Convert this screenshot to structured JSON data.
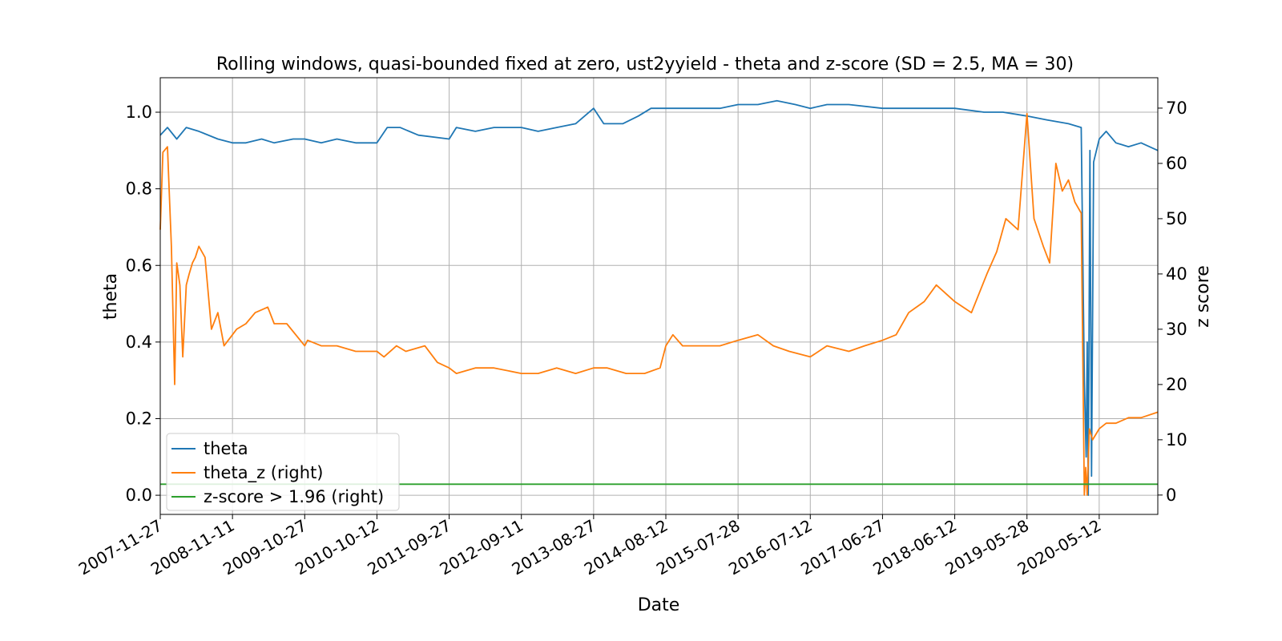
{
  "chart_data": {
    "type": "line",
    "title": "Rolling windows, quasi-bounded fixed at zero, ust2yyield - theta and z-score (SD = 2.5, MA = 30)",
    "xlabel": "Date",
    "ylabel": "theta",
    "y2label": "z score",
    "x_tick_labels": [
      "2007-11-27",
      "2008-11-11",
      "2009-10-27",
      "2010-10-12",
      "2011-09-27",
      "2012-09-11",
      "2013-08-27",
      "2014-08-12",
      "2015-07-28",
      "2016-07-12",
      "2017-06-27",
      "2018-06-12",
      "2019-05-28",
      "2020-05-12"
    ],
    "xlim": [
      "2007-11-27",
      "2021-02-20"
    ],
    "ylim": [
      -0.05,
      1.09
    ],
    "y2lim": [
      -3.5,
      75.5
    ],
    "y_ticks": [
      0.0,
      0.2,
      0.4,
      0.6,
      0.8,
      1.0
    ],
    "y_tick_labels": [
      "0.0",
      "0.2",
      "0.4",
      "0.6",
      "0.8",
      "1.0"
    ],
    "y2_ticks": [
      0,
      10,
      20,
      30,
      40,
      50,
      60,
      70
    ],
    "y2_tick_labels": [
      "0",
      "10",
      "20",
      "30",
      "40",
      "50",
      "60",
      "70"
    ],
    "grid": true,
    "legend_position": "lower-left",
    "colors": {
      "theta": "#1f77b4",
      "theta_z": "#ff7f0e",
      "threshold": "#2ca02c",
      "grid": "#b0b0b0"
    },
    "series": [
      {
        "name": "theta",
        "axis": "left",
        "x": [
          "2007-11-27",
          "2008-01-01",
          "2008-02-15",
          "2008-04-01",
          "2008-06-01",
          "2008-09-01",
          "2008-11-11",
          "2009-01-15",
          "2009-04-01",
          "2009-06-01",
          "2009-09-01",
          "2009-10-27",
          "2010-01-15",
          "2010-04-01",
          "2010-07-01",
          "2010-10-12",
          "2010-12-01",
          "2011-02-01",
          "2011-05-01",
          "2011-09-27",
          "2011-11-01",
          "2012-02-01",
          "2012-05-01",
          "2012-09-11",
          "2012-12-01",
          "2013-03-01",
          "2013-06-01",
          "2013-08-27",
          "2013-10-15",
          "2014-01-15",
          "2014-04-01",
          "2014-06-01",
          "2014-08-12",
          "2014-11-01",
          "2015-02-01",
          "2015-05-01",
          "2015-07-28",
          "2015-11-01",
          "2016-02-01",
          "2016-05-01",
          "2016-07-12",
          "2016-10-01",
          "2017-01-15",
          "2017-06-27",
          "2017-10-01",
          "2018-01-15",
          "2018-06-12",
          "2018-11-01",
          "2019-02-01",
          "2019-05-28",
          "2019-09-01",
          "2019-12-15",
          "2020-02-15",
          "2020-03-01",
          "2020-03-10",
          "2020-03-15",
          "2020-03-20",
          "2020-03-28",
          "2020-04-05",
          "2020-04-15",
          "2020-05-12",
          "2020-06-15",
          "2020-08-01",
          "2020-10-01",
          "2020-12-01",
          "2021-02-20"
        ],
        "values": [
          0.94,
          0.96,
          0.93,
          0.96,
          0.95,
          0.93,
          0.92,
          0.92,
          0.93,
          0.92,
          0.93,
          0.93,
          0.92,
          0.93,
          0.92,
          0.92,
          0.96,
          0.96,
          0.94,
          0.93,
          0.96,
          0.95,
          0.96,
          0.96,
          0.95,
          0.96,
          0.97,
          1.01,
          0.97,
          0.97,
          0.99,
          1.01,
          1.01,
          1.01,
          1.01,
          1.01,
          1.02,
          1.02,
          1.03,
          1.02,
          1.01,
          1.02,
          1.02,
          1.01,
          1.01,
          1.01,
          1.01,
          1.0,
          1.0,
          0.99,
          0.98,
          0.97,
          0.96,
          0.3,
          0.1,
          0.4,
          0.0,
          0.9,
          0.05,
          0.87,
          0.93,
          0.95,
          0.92,
          0.91,
          0.92,
          0.9
        ]
      },
      {
        "name": "theta_z (right)",
        "axis": "right",
        "x": [
          "2007-11-27",
          "2007-12-10",
          "2008-01-01",
          "2008-01-20",
          "2008-02-05",
          "2008-02-15",
          "2008-03-01",
          "2008-03-15",
          "2008-04-01",
          "2008-04-15",
          "2008-05-01",
          "2008-05-15",
          "2008-06-01",
          "2008-07-01",
          "2008-08-01",
          "2008-09-01",
          "2008-10-01",
          "2008-11-11",
          "2008-12-01",
          "2009-01-15",
          "2009-03-01",
          "2009-05-01",
          "2009-06-01",
          "2009-08-01",
          "2009-10-27",
          "2009-11-10",
          "2010-01-15",
          "2010-04-01",
          "2010-07-01",
          "2010-10-12",
          "2010-11-15",
          "2011-01-15",
          "2011-03-01",
          "2011-06-01",
          "2011-08-01",
          "2011-09-27",
          "2011-11-01",
          "2012-02-01",
          "2012-05-01",
          "2012-09-11",
          "2012-12-01",
          "2013-03-01",
          "2013-06-01",
          "2013-08-27",
          "2013-11-01",
          "2014-02-01",
          "2014-05-01",
          "2014-07-15",
          "2014-08-12",
          "2014-09-15",
          "2014-11-01",
          "2015-02-01",
          "2015-05-01",
          "2015-07-28",
          "2015-11-01",
          "2016-01-15",
          "2016-04-01",
          "2016-07-12",
          "2016-10-01",
          "2017-01-15",
          "2017-04-01",
          "2017-06-27",
          "2017-09-01",
          "2017-11-01",
          "2018-01-15",
          "2018-03-15",
          "2018-06-12",
          "2018-09-01",
          "2018-11-15",
          "2019-01-01",
          "2019-02-15",
          "2019-04-15",
          "2019-05-28",
          "2019-07-01",
          "2019-08-15",
          "2019-09-15",
          "2019-10-15",
          "2019-11-15",
          "2019-12-15",
          "2020-01-15",
          "2020-02-15",
          "2020-03-01",
          "2020-03-08",
          "2020-03-15",
          "2020-03-25",
          "2020-04-10",
          "2020-05-12",
          "2020-06-15",
          "2020-08-01",
          "2020-10-01",
          "2020-12-01",
          "2021-02-20"
        ],
        "values": [
          48,
          62,
          63,
          45,
          20,
          42,
          38,
          25,
          38,
          40,
          42,
          43,
          45,
          43,
          30,
          33,
          27,
          29,
          30,
          31,
          33,
          34,
          31,
          31,
          27,
          28,
          27,
          27,
          26,
          26,
          25,
          27,
          26,
          27,
          24,
          23,
          22,
          23,
          23,
          22,
          22,
          23,
          22,
          23,
          23,
          22,
          22,
          23,
          27,
          29,
          27,
          27,
          27,
          28,
          29,
          27,
          26,
          25,
          27,
          26,
          27,
          28,
          29,
          33,
          35,
          38,
          35,
          33,
          40,
          44,
          50,
          48,
          69,
          50,
          45,
          42,
          60,
          55,
          57,
          53,
          51,
          0,
          5,
          0,
          12,
          10,
          12,
          13,
          13,
          14,
          14,
          15
        ]
      },
      {
        "name": "z-score > 1.96 (right)",
        "axis": "right",
        "x": [
          "2007-11-27",
          "2021-02-20"
        ],
        "values": [
          1.96,
          1.96
        ]
      }
    ]
  }
}
